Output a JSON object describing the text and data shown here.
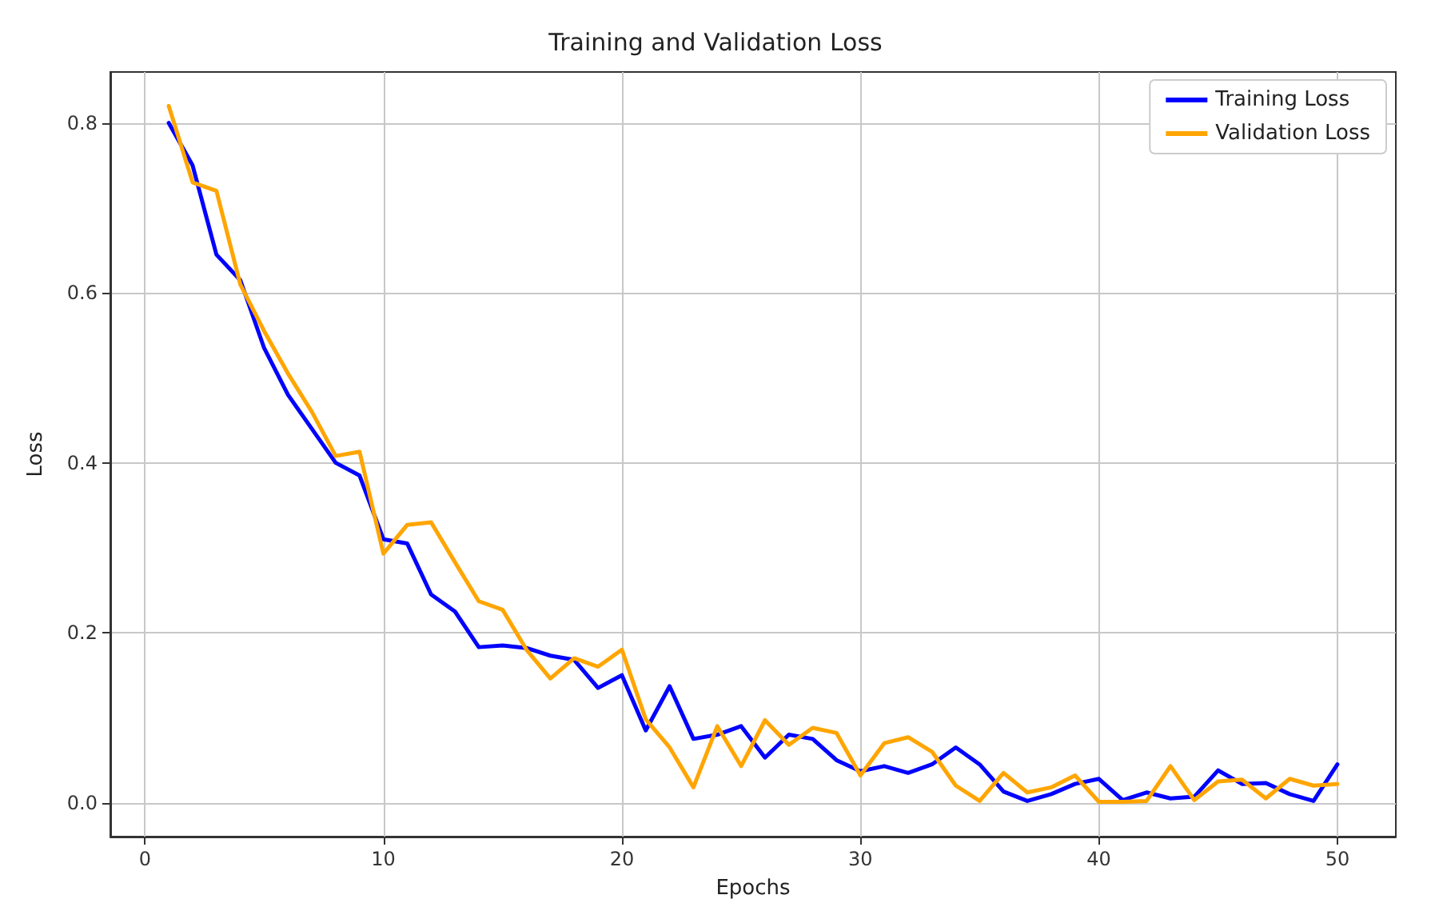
{
  "chart_data": {
    "type": "line",
    "title": "Training and Validation Loss",
    "xlabel": "Epochs",
    "ylabel": "Loss",
    "x": [
      1,
      2,
      3,
      4,
      5,
      6,
      7,
      8,
      9,
      10,
      11,
      12,
      13,
      14,
      15,
      16,
      17,
      18,
      19,
      20,
      21,
      22,
      23,
      24,
      25,
      26,
      27,
      28,
      29,
      30,
      31,
      32,
      33,
      34,
      35,
      36,
      37,
      38,
      39,
      40,
      41,
      42,
      43,
      44,
      45,
      46,
      47,
      48,
      49,
      50
    ],
    "series": [
      {
        "name": "Training Loss",
        "color": "#0000ff",
        "values": [
          0.8,
          0.75,
          0.645,
          0.615,
          0.535,
          0.48,
          0.44,
          0.4,
          0.385,
          0.31,
          0.305,
          0.245,
          0.225,
          0.183,
          0.185,
          0.182,
          0.173,
          0.168,
          0.135,
          0.15,
          0.085,
          0.137,
          0.075,
          0.08,
          0.09,
          0.053,
          0.08,
          0.075,
          0.05,
          0.037,
          0.043,
          0.035,
          0.045,
          0.065,
          0.045,
          0.013,
          0.002,
          0.01,
          0.022,
          0.028,
          0.003,
          0.012,
          0.005,
          0.007,
          0.038,
          0.022,
          0.023,
          0.01,
          0.002,
          0.045
        ]
      },
      {
        "name": "Validation Loss",
        "color": "#ffa500",
        "values": [
          0.82,
          0.73,
          0.72,
          0.61,
          0.555,
          0.505,
          0.46,
          0.408,
          0.413,
          0.293,
          0.327,
          0.33,
          0.283,
          0.237,
          0.227,
          0.18,
          0.146,
          0.17,
          0.16,
          0.18,
          0.098,
          0.065,
          0.018,
          0.09,
          0.043,
          0.097,
          0.068,
          0.088,
          0.082,
          0.032,
          0.07,
          0.077,
          0.06,
          0.02,
          0.002,
          0.035,
          0.012,
          0.018,
          0.032,
          0.001,
          0.001,
          0.002,
          0.043,
          0.003,
          0.025,
          0.027,
          0.005,
          0.028,
          0.02,
          0.022
        ]
      }
    ],
    "xlim": [
      -1.45,
      52.45
    ],
    "xticks": [
      0,
      10,
      20,
      30,
      40,
      50
    ],
    "ylim": [
      -0.04,
      0.86
    ],
    "yticks": [
      {
        "value": 0,
        "label": "0.0"
      },
      {
        "value": 0.2,
        "label": "0.2"
      },
      {
        "value": 0.4,
        "label": "0.4"
      },
      {
        "value": 0.6,
        "label": "0.6"
      },
      {
        "value": 0.8,
        "label": "0.8"
      }
    ],
    "grid": true,
    "legend": "top right",
    "line_style": "solid",
    "marker": "none"
  }
}
